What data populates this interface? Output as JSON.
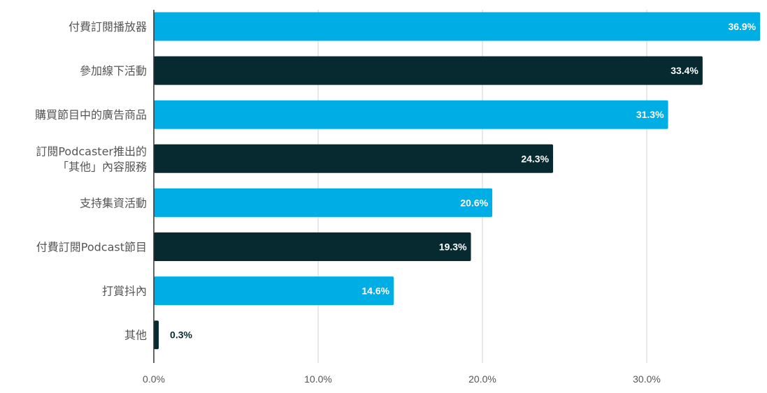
{
  "chart_data": {
    "type": "bar",
    "orientation": "horizontal",
    "categories": [
      [
        "付費訂閱播放器"
      ],
      [
        "參加線下活動"
      ],
      [
        "購買節目中的廣告商品"
      ],
      [
        "訂閱Podcaster推出的",
        "「其他」內容服務"
      ],
      [
        "支持集資活動"
      ],
      [
        "付費訂閱Podcast節目"
      ],
      [
        "打賞抖內"
      ],
      [
        "其他"
      ]
    ],
    "values": [
      36.9,
      33.4,
      31.3,
      24.3,
      20.6,
      19.3,
      14.6,
      0.3
    ],
    "value_labels": [
      "36.9%",
      "33.4%",
      "31.3%",
      "24.3%",
      "20.6%",
      "19.3%",
      "14.6%",
      "0.3%"
    ],
    "bar_colors": [
      "#00aee6",
      "#062a30",
      "#00aee6",
      "#062a30",
      "#00aee6",
      "#062a30",
      "#00aee6",
      "#062a30"
    ],
    "xlim": [
      0,
      37
    ],
    "xticks": [
      0,
      10,
      20,
      30
    ],
    "xtick_labels": [
      "0.0%",
      "10.0%",
      "20.0%",
      "30.0%"
    ],
    "grid": "vertical",
    "legend": "none",
    "title": "",
    "xlabel": "",
    "ylabel": ""
  },
  "colors": {
    "grid": "#d0d0d0",
    "axis": "#333333",
    "label_text": "#555555",
    "value_inside": "#ffffff",
    "value_outside": "#062a30"
  }
}
